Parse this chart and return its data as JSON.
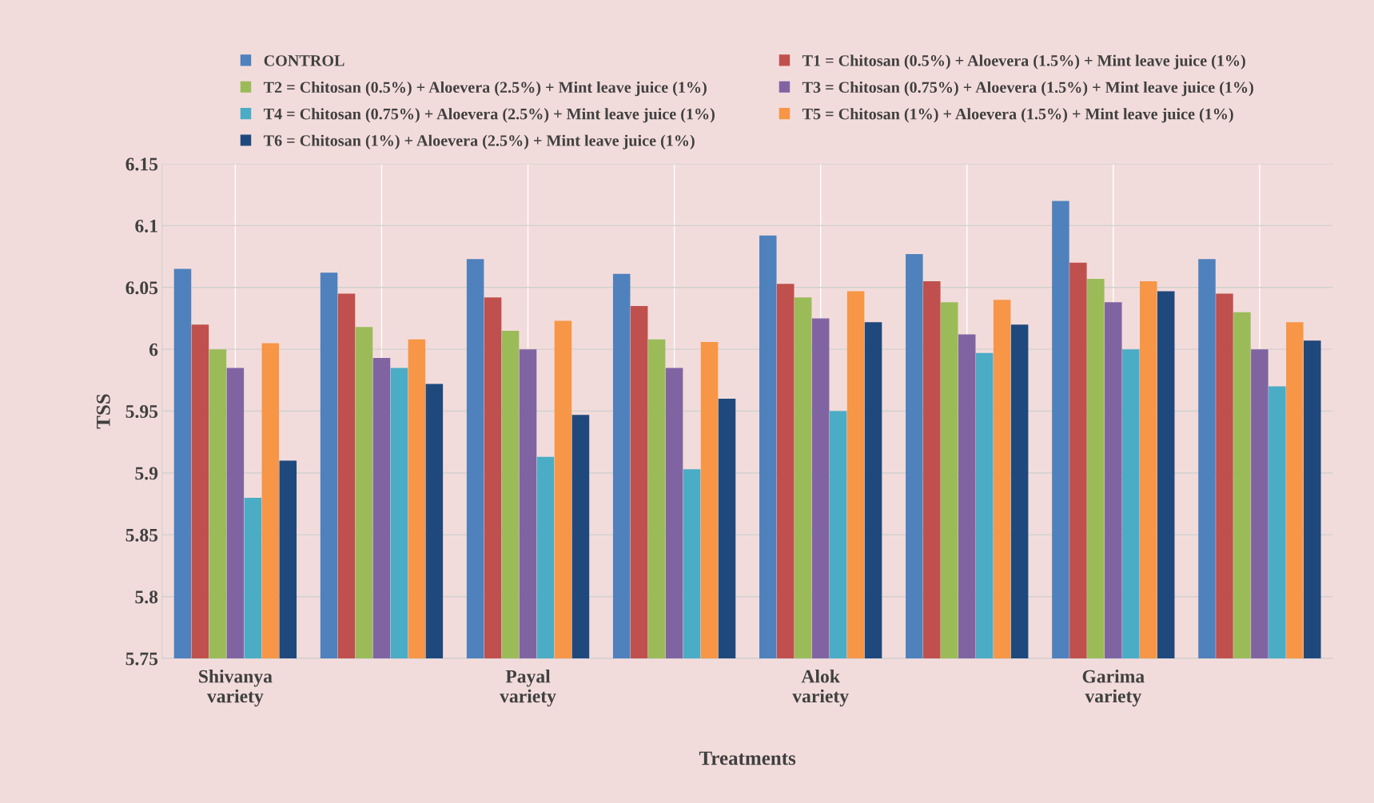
{
  "chart_data": {
    "type": "bar",
    "xlabel": "Treatments",
    "ylabel": "TSS",
    "categories": [
      "Shivanya\nvariety",
      null,
      "Payal\nvariety",
      null,
      "Alok\nvariety",
      null,
      "Garima\nvariety",
      null
    ],
    "series": [
      {
        "name": "CONTROL",
        "color": "#4f81bd",
        "values": [
          6.065,
          6.062,
          6.073,
          6.061,
          6.092,
          6.077,
          6.12,
          6.073
        ]
      },
      {
        "name": "T1 = Chitosan (0.5%) + Aloevera (1.5%) + Mint leave juice (1%)",
        "color": "#c0504d",
        "values": [
          6.02,
          6.045,
          6.042,
          6.035,
          6.053,
          6.055,
          6.07,
          6.045
        ]
      },
      {
        "name": "T2 = Chitosan (0.5%) + Aloevera (2.5%) + Mint leave juice (1%)",
        "color": "#9bbb59",
        "values": [
          6.0,
          6.018,
          6.015,
          6.008,
          6.042,
          6.038,
          6.057,
          6.03
        ]
      },
      {
        "name": "T3 = Chitosan (0.75%) + Aloevera (1.5%) + Mint leave juice (1%)",
        "color": "#8064a2",
        "values": [
          5.985,
          5.993,
          6.0,
          5.985,
          6.025,
          6.012,
          6.038,
          6.0
        ]
      },
      {
        "name": "T4 = Chitosan (0.75%) + Aloevera (2.5%) + Mint leave juice (1%)",
        "color": "#4bacc6",
        "values": [
          5.88,
          5.985,
          5.913,
          5.903,
          5.95,
          5.997,
          6.0,
          5.97
        ]
      },
      {
        "name": "T5 = Chitosan (1%) + Aloevera (1.5%) + Mint leave juice (1%)",
        "color": "#f79646",
        "values": [
          6.005,
          6.008,
          6.023,
          6.006,
          6.047,
          6.04,
          6.055,
          6.022
        ]
      },
      {
        "name": "T6 = Chitosan (1%) + Aloevera (2.5%) + Mint leave juice (1%)",
        "color": "#1f497d",
        "values": [
          5.91,
          5.972,
          5.947,
          5.96,
          6.022,
          6.02,
          6.047,
          6.007
        ]
      }
    ],
    "ylim": [
      5.75,
      6.15
    ],
    "yticks": [
      5.75,
      5.8,
      5.85,
      5.9,
      5.95,
      6,
      6.05,
      6.1,
      6.15
    ],
    "grid": true,
    "legend": "top"
  }
}
